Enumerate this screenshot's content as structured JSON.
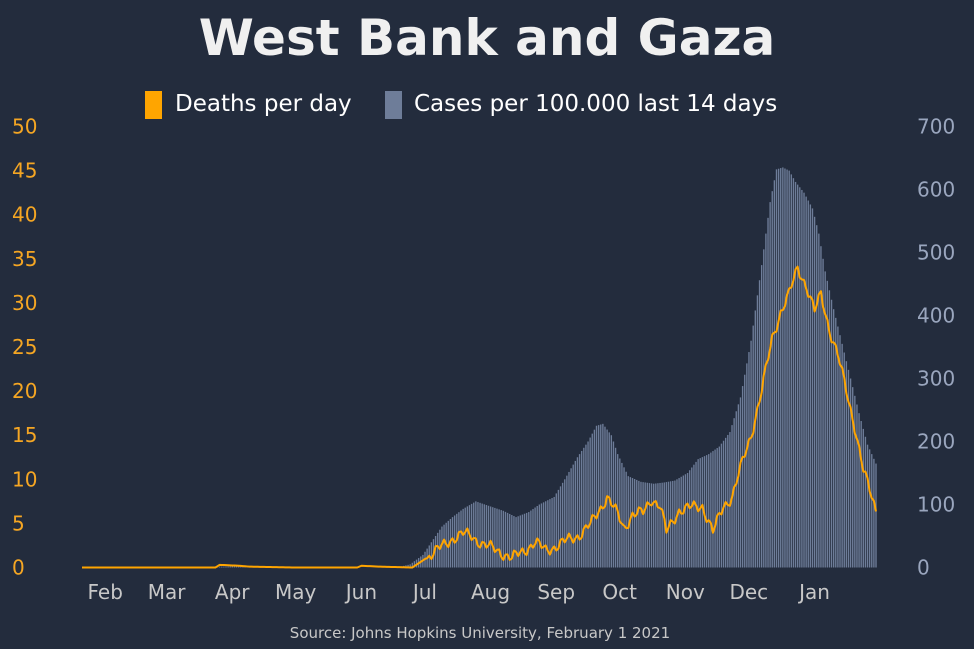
{
  "chart_data": {
    "type": "bar",
    "title": "West Bank and Gaza",
    "source": "Source: Johns Hopkins University, February 1 2021",
    "legend": {
      "placement": "top-center",
      "items": [
        {
          "label": "Deaths per day",
          "color": "#ffa500"
        },
        {
          "label": "Cases per 100.000 last 14 days",
          "color": "#6e7d99"
        }
      ]
    },
    "x_range_dates": [
      "2020-01-22",
      "2021-01-31"
    ],
    "x_tick_labels": [
      "Feb",
      "Mar",
      "Apr",
      "May",
      "Jun",
      "Jul",
      "Aug",
      "Sep",
      "Oct",
      "Nov",
      "Dec",
      "Jan"
    ],
    "x_tick_dates": [
      "2020-02-01",
      "2020-03-01",
      "2020-04-01",
      "2020-05-01",
      "2020-06-01",
      "2020-07-01",
      "2020-08-01",
      "2020-09-01",
      "2020-10-01",
      "2020-11-01",
      "2020-12-01",
      "2021-01-01"
    ],
    "y_left": {
      "ylim": [
        0,
        50
      ],
      "ticks": [
        0,
        5,
        10,
        15,
        20,
        25,
        30,
        35,
        40,
        45,
        50
      ],
      "color": "#f5a623"
    },
    "y_right": {
      "ylim": [
        0,
        700
      ],
      "ticks": [
        0,
        100,
        200,
        300,
        400,
        500,
        600,
        700
      ],
      "color": "#9aa6be"
    },
    "grid": false,
    "series": [
      {
        "name": "Cases per 100.000 last 14 days",
        "type": "bar",
        "axis": "right",
        "color": "#6e7d99",
        "points": [
          [
            "2020-01-22",
            0
          ],
          [
            "2020-03-05",
            0
          ],
          [
            "2020-03-20",
            1
          ],
          [
            "2020-04-10",
            2
          ],
          [
            "2020-04-25",
            1
          ],
          [
            "2020-05-15",
            0
          ],
          [
            "2020-06-10",
            0
          ],
          [
            "2020-06-20",
            1
          ],
          [
            "2020-06-25",
            5
          ],
          [
            "2020-07-01",
            20
          ],
          [
            "2020-07-06",
            45
          ],
          [
            "2020-07-10",
            65
          ],
          [
            "2020-07-15",
            80
          ],
          [
            "2020-07-20",
            93
          ],
          [
            "2020-07-26",
            105
          ],
          [
            "2020-08-01",
            98
          ],
          [
            "2020-08-08",
            90
          ],
          [
            "2020-08-14",
            80
          ],
          [
            "2020-08-20",
            88
          ],
          [
            "2020-08-25",
            100
          ],
          [
            "2020-09-01",
            112
          ],
          [
            "2020-09-06",
            140
          ],
          [
            "2020-09-12",
            175
          ],
          [
            "2020-09-17",
            200
          ],
          [
            "2020-09-21",
            225
          ],
          [
            "2020-09-24",
            228
          ],
          [
            "2020-09-28",
            210
          ],
          [
            "2020-10-01",
            180
          ],
          [
            "2020-10-06",
            145
          ],
          [
            "2020-10-12",
            136
          ],
          [
            "2020-10-18",
            133
          ],
          [
            "2020-10-23",
            135
          ],
          [
            "2020-10-28",
            138
          ],
          [
            "2020-11-03",
            150
          ],
          [
            "2020-11-08",
            172
          ],
          [
            "2020-11-13",
            180
          ],
          [
            "2020-11-18",
            192
          ],
          [
            "2020-11-23",
            215
          ],
          [
            "2020-11-28",
            270
          ],
          [
            "2020-12-03",
            360
          ],
          [
            "2020-12-08",
            480
          ],
          [
            "2020-12-12",
            580
          ],
          [
            "2020-12-15",
            632
          ],
          [
            "2020-12-18",
            635
          ],
          [
            "2020-12-21",
            630
          ],
          [
            "2020-12-24",
            612
          ],
          [
            "2020-12-28",
            595
          ],
          [
            "2021-01-01",
            570
          ],
          [
            "2021-01-04",
            530
          ],
          [
            "2021-01-07",
            470
          ],
          [
            "2021-01-11",
            410
          ],
          [
            "2021-01-15",
            355
          ],
          [
            "2021-01-19",
            300
          ],
          [
            "2021-01-23",
            245
          ],
          [
            "2021-01-27",
            195
          ],
          [
            "2021-01-31",
            165
          ]
        ]
      },
      {
        "name": "Deaths per day",
        "type": "line",
        "axis": "left",
        "color": "#ffa500",
        "points": [
          [
            "2020-01-22",
            0
          ],
          [
            "2020-03-25",
            0
          ],
          [
            "2020-03-27",
            0.3
          ],
          [
            "2020-04-05",
            0.2
          ],
          [
            "2020-04-10",
            0.1
          ],
          [
            "2020-05-01",
            0
          ],
          [
            "2020-05-31",
            0
          ],
          [
            "2020-06-02",
            0.2
          ],
          [
            "2020-06-10",
            0.1
          ],
          [
            "2020-06-26",
            0
          ],
          [
            "2020-07-01",
            0.8
          ],
          [
            "2020-07-08",
            2.0
          ],
          [
            "2020-07-15",
            3.3
          ],
          [
            "2020-07-20",
            3.8
          ],
          [
            "2020-07-24",
            3.6
          ],
          [
            "2020-07-30",
            2.5
          ],
          [
            "2020-08-05",
            2.0
          ],
          [
            "2020-08-12",
            1.0
          ],
          [
            "2020-08-18",
            2.0
          ],
          [
            "2020-08-23",
            2.8
          ],
          [
            "2020-08-28",
            2.0
          ],
          [
            "2020-09-03",
            2.5
          ],
          [
            "2020-09-08",
            3.2
          ],
          [
            "2020-09-13",
            3.7
          ],
          [
            "2020-09-18",
            4.8
          ],
          [
            "2020-09-23",
            6.8
          ],
          [
            "2020-09-26",
            8.0
          ],
          [
            "2020-10-01",
            6.0
          ],
          [
            "2020-10-04",
            4.5
          ],
          [
            "2020-10-08",
            6.0
          ],
          [
            "2020-10-13",
            6.2
          ],
          [
            "2020-10-17",
            7.8
          ],
          [
            "2020-10-21",
            7.0
          ],
          [
            "2020-10-24",
            4.0
          ],
          [
            "2020-10-30",
            6.5
          ],
          [
            "2020-11-05",
            6.8
          ],
          [
            "2020-11-10",
            7.0
          ],
          [
            "2020-11-15",
            4.0
          ],
          [
            "2020-11-20",
            7.0
          ],
          [
            "2020-11-24",
            8.0
          ],
          [
            "2020-11-29",
            12.0
          ],
          [
            "2020-12-03",
            15.0
          ],
          [
            "2020-12-08",
            20.0
          ],
          [
            "2020-12-13",
            26.0
          ],
          [
            "2020-12-17",
            29.0
          ],
          [
            "2020-12-21",
            31.0
          ],
          [
            "2020-12-25",
            34.0
          ],
          [
            "2020-12-29",
            32.0
          ],
          [
            "2021-01-02",
            29.0
          ],
          [
            "2021-01-05",
            31.0
          ],
          [
            "2021-01-09",
            27.0
          ],
          [
            "2021-01-13",
            24.0
          ],
          [
            "2021-01-17",
            20.0
          ],
          [
            "2021-01-21",
            16.0
          ],
          [
            "2021-01-25",
            11.0
          ],
          [
            "2021-01-29",
            8.0
          ],
          [
            "2021-01-31",
            6.5
          ]
        ]
      }
    ]
  }
}
